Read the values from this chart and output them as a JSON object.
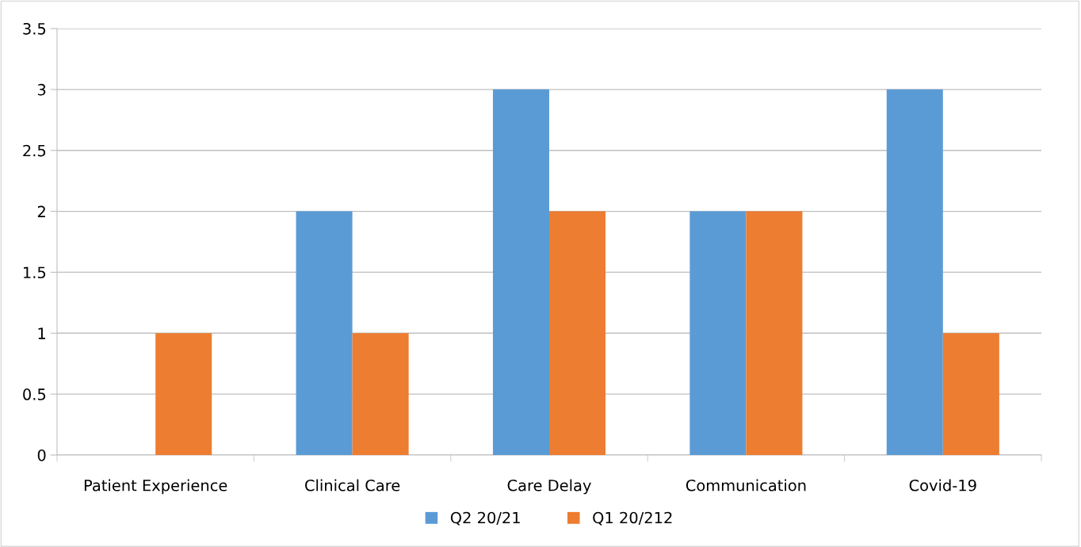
{
  "chart_data": {
    "type": "bar",
    "categories": [
      "Patient Experience",
      "Clinical Care",
      "Care Delay",
      "Communication",
      "Covid-19"
    ],
    "series": [
      {
        "name": "Q2 20/21",
        "color": "#5b9bd5",
        "values": [
          0,
          2,
          3,
          2,
          3
        ]
      },
      {
        "name": "Q1 20/212",
        "color": "#ed7d31",
        "values": [
          1,
          1,
          2,
          2,
          1
        ]
      }
    ],
    "ylim": [
      0,
      3.5
    ],
    "yticks": [
      0,
      0.5,
      1,
      1.5,
      2,
      2.5,
      3,
      3.5
    ],
    "grid": "y",
    "legend": "bottom"
  }
}
